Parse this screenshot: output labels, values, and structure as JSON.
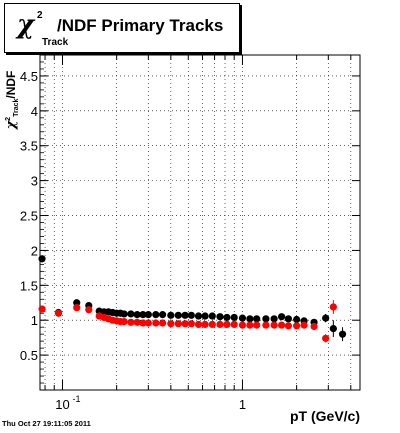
{
  "title": {
    "chi": "χ",
    "sup": "2",
    "sub": "Track",
    "rest": "/NDF  Primary Tracks"
  },
  "timestamp": "Thu Oct 27 19:11:05 2011",
  "chart_data": {
    "type": "scatter",
    "xlabel": "pT (GeV/c)",
    "ylabel": {
      "chi": "χ",
      "sup": "2",
      "sub": "Track",
      "rest": "/NDF"
    },
    "xscale": "log",
    "xlim": [
      0.075,
      4.5
    ],
    "ylim": [
      0,
      4.8
    ],
    "xticks": [
      {
        "value": 0.1,
        "label": "10",
        "exp": "-1"
      },
      {
        "value": 1,
        "label": "1",
        "exp": ""
      }
    ],
    "yticks": [
      0.5,
      1,
      1.5,
      2,
      2.5,
      3,
      3.5,
      4,
      4.5
    ],
    "grid": true,
    "series": [
      {
        "color": "#000000",
        "points": [
          [
            0.077,
            1.88,
            0.05
          ],
          [
            0.095,
            1.11,
            0.02
          ],
          [
            0.12,
            1.25,
            0.03
          ],
          [
            0.14,
            1.21,
            0.03
          ],
          [
            0.16,
            1.13,
            0.02
          ],
          [
            0.17,
            1.12,
            0.02
          ],
          [
            0.18,
            1.12,
            0.02
          ],
          [
            0.19,
            1.11,
            0.02
          ],
          [
            0.2,
            1.1,
            0.02
          ],
          [
            0.21,
            1.1,
            0.02
          ],
          [
            0.22,
            1.09,
            0.02
          ],
          [
            0.24,
            1.09,
            0.02
          ],
          [
            0.26,
            1.08,
            0.02
          ],
          [
            0.28,
            1.08,
            0.02
          ],
          [
            0.3,
            1.08,
            0.02
          ],
          [
            0.33,
            1.08,
            0.02
          ],
          [
            0.36,
            1.08,
            0.02
          ],
          [
            0.4,
            1.07,
            0.02
          ],
          [
            0.44,
            1.07,
            0.02
          ],
          [
            0.48,
            1.07,
            0.02
          ],
          [
            0.52,
            1.07,
            0.02
          ],
          [
            0.57,
            1.06,
            0.02
          ],
          [
            0.62,
            1.06,
            0.02
          ],
          [
            0.68,
            1.06,
            0.02
          ],
          [
            0.75,
            1.05,
            0.02
          ],
          [
            0.82,
            1.04,
            0.02
          ],
          [
            0.9,
            1.04,
            0.02
          ],
          [
            1.0,
            1.03,
            0.02
          ],
          [
            1.1,
            1.02,
            0.02
          ],
          [
            1.2,
            1.02,
            0.02
          ],
          [
            1.35,
            1.02,
            0.02
          ],
          [
            1.5,
            1.02,
            0.02
          ],
          [
            1.65,
            1.05,
            0.03
          ],
          [
            1.8,
            1.02,
            0.03
          ],
          [
            2.0,
            1.01,
            0.03
          ],
          [
            2.2,
            0.99,
            0.03
          ],
          [
            2.5,
            0.97,
            0.04
          ],
          [
            2.9,
            1.03,
            0.06
          ],
          [
            3.2,
            0.88,
            0.12
          ],
          [
            3.6,
            0.8,
            0.1
          ]
        ]
      },
      {
        "color": "#ff0000",
        "points": [
          [
            0.077,
            1.16,
            0.03
          ],
          [
            0.095,
            1.1,
            0.02
          ],
          [
            0.12,
            1.18,
            0.03
          ],
          [
            0.14,
            1.15,
            0.03
          ],
          [
            0.16,
            1.06,
            0.02
          ],
          [
            0.17,
            1.04,
            0.02
          ],
          [
            0.18,
            1.02,
            0.02
          ],
          [
            0.19,
            1.0,
            0.02
          ],
          [
            0.2,
            0.99,
            0.02
          ],
          [
            0.21,
            0.98,
            0.02
          ],
          [
            0.22,
            0.98,
            0.02
          ],
          [
            0.24,
            0.97,
            0.02
          ],
          [
            0.26,
            0.97,
            0.02
          ],
          [
            0.28,
            0.96,
            0.02
          ],
          [
            0.3,
            0.96,
            0.02
          ],
          [
            0.33,
            0.96,
            0.02
          ],
          [
            0.36,
            0.96,
            0.02
          ],
          [
            0.4,
            0.95,
            0.02
          ],
          [
            0.44,
            0.95,
            0.02
          ],
          [
            0.48,
            0.95,
            0.02
          ],
          [
            0.52,
            0.95,
            0.02
          ],
          [
            0.57,
            0.94,
            0.02
          ],
          [
            0.62,
            0.94,
            0.02
          ],
          [
            0.68,
            0.94,
            0.02
          ],
          [
            0.75,
            0.94,
            0.02
          ],
          [
            0.82,
            0.94,
            0.02
          ],
          [
            0.9,
            0.94,
            0.02
          ],
          [
            1.0,
            0.93,
            0.02
          ],
          [
            1.1,
            0.93,
            0.02
          ],
          [
            1.2,
            0.93,
            0.02
          ],
          [
            1.35,
            0.93,
            0.02
          ],
          [
            1.5,
            0.93,
            0.02
          ],
          [
            1.65,
            0.93,
            0.02
          ],
          [
            1.8,
            0.92,
            0.03
          ],
          [
            2.0,
            0.92,
            0.03
          ],
          [
            2.2,
            0.93,
            0.03
          ],
          [
            2.5,
            0.91,
            0.04
          ],
          [
            2.9,
            0.74,
            0.06
          ],
          [
            3.2,
            1.19,
            0.1
          ]
        ]
      }
    ]
  }
}
